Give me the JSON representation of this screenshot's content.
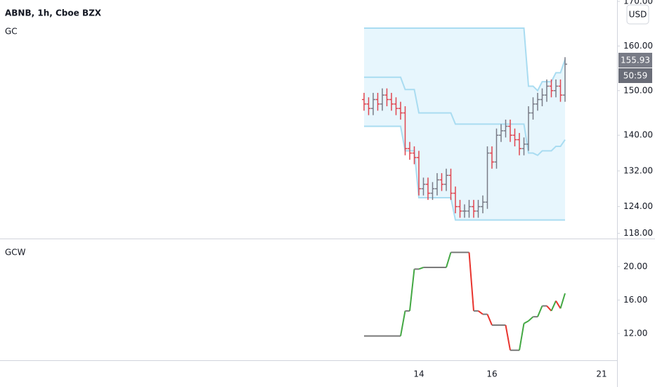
{
  "chart_data": [
    {
      "type": "ohlc",
      "title": "ABNB, 1h, Cboe BZX",
      "subtitle": "GC",
      "categories": [
        null,
        null,
        null,
        null,
        null,
        null,
        null,
        null,
        null,
        null,
        null,
        null,
        "14",
        null,
        null,
        null,
        null,
        null,
        null,
        null,
        null,
        null,
        null,
        null,
        null,
        null,
        null,
        null,
        "16",
        null,
        null,
        null,
        null,
        null,
        null,
        null,
        null,
        null,
        null,
        null,
        null,
        null,
        null,
        null,
        null,
        null,
        null,
        null,
        null,
        null,
        null,
        null,
        "21"
      ],
      "open": [
        148,
        147,
        146,
        148,
        147,
        149,
        148,
        147,
        146,
        145,
        137,
        136,
        135,
        128,
        129,
        127,
        128,
        130,
        129,
        131,
        127,
        124,
        123,
        123,
        124,
        123,
        124,
        125,
        136,
        134,
        140,
        141,
        142,
        140,
        139,
        137,
        138,
        145,
        147,
        148,
        149,
        151,
        150,
        151,
        149,
        null,
        null,
        null,
        null,
        null,
        null,
        null,
        null
      ],
      "high": [
        149.5,
        148.5,
        149.5,
        149.5,
        150.5,
        150.5,
        149.5,
        148.5,
        147.5,
        146.5,
        138.5,
        137.5,
        136.5,
        130.5,
        130.5,
        129.5,
        131.5,
        131.5,
        132.5,
        132.5,
        128.5,
        125.5,
        124.5,
        125.5,
        125.5,
        125.5,
        126.5,
        137.5,
        137.5,
        141.5,
        142.5,
        143.5,
        143.5,
        141.5,
        140.5,
        139.5,
        146.5,
        148.5,
        149.5,
        150.5,
        152.5,
        152.5,
        152.5,
        152.5,
        157.5,
        null,
        null,
        null,
        null,
        null,
        null,
        null,
        null
      ],
      "low": [
        145.5,
        144.5,
        144.5,
        145.5,
        145.5,
        146.5,
        145.5,
        144.5,
        143.5,
        135.5,
        134.5,
        133.5,
        126.5,
        126.5,
        125.5,
        125.5,
        126.5,
        127.5,
        127.5,
        125.5,
        122.5,
        121.5,
        121.5,
        121.5,
        121.5,
        121.5,
        122.5,
        123.5,
        132.5,
        132.5,
        138.5,
        139.5,
        138.5,
        137.5,
        135.5,
        135.5,
        136.5,
        143.5,
        145.5,
        146.5,
        147.5,
        148.5,
        148.5,
        147.5,
        147.5,
        null,
        null,
        null,
        null,
        null,
        null,
        null,
        null
      ],
      "close": [
        147,
        146,
        148,
        147,
        149,
        148,
        147,
        146,
        145,
        137,
        136,
        135,
        128,
        129,
        127,
        128,
        130,
        129,
        131,
        127,
        124,
        123,
        123,
        124,
        123,
        124,
        125,
        136,
        134,
        140,
        141,
        142,
        140,
        139,
        137,
        138,
        145,
        147,
        148,
        149,
        151,
        150,
        151,
        149,
        155.93,
        null,
        null,
        null,
        null,
        null,
        null,
        null,
        null
      ],
      "up_color": "#787b86",
      "down_color": "#e0454f",
      "channel": {
        "color": "#a9dcf1",
        "fill": "#e7f6fd",
        "upper": [
          164,
          164,
          164,
          164,
          164,
          164,
          164,
          164,
          164,
          164,
          164,
          164,
          164,
          164,
          164,
          164,
          164,
          164,
          164,
          164,
          164,
          164,
          164,
          164,
          164,
          164,
          164,
          164,
          164,
          164,
          164,
          164,
          164,
          164,
          164,
          164,
          151,
          151,
          150,
          152,
          152,
          152,
          154,
          154,
          157,
          null,
          null,
          null,
          null,
          null,
          null,
          null,
          null
        ],
        "middle": [
          153,
          153,
          153,
          153,
          153,
          153,
          153,
          153,
          153,
          150.25,
          150.25,
          150.25,
          145,
          145,
          145,
          145,
          145,
          145,
          145,
          145,
          142.5,
          142.5,
          142.5,
          142.5,
          142.5,
          142.5,
          142.5,
          142.5,
          142.5,
          142.5,
          142.5,
          142.5,
          142.5,
          142.5,
          142.5,
          142.5,
          136,
          136,
          135.5,
          136.5,
          136.5,
          136.5,
          137.5,
          137.5,
          139,
          null,
          null,
          null,
          null,
          null,
          null,
          null,
          null
        ],
        "lower": [
          142,
          142,
          142,
          142,
          142,
          142,
          142,
          142,
          142,
          136.5,
          136.5,
          136.5,
          126,
          126,
          126,
          126,
          126,
          126,
          126,
          126,
          121,
          121,
          121,
          121,
          121,
          121,
          121,
          121,
          121,
          121,
          121,
          121,
          121,
          121,
          121,
          121,
          121,
          121,
          121,
          121,
          121,
          121,
          121,
          121,
          121,
          null,
          null,
          null,
          null,
          null,
          null,
          null,
          null
        ]
      },
      "ylim": [
        117,
        170
      ],
      "yticks": [
        {
          "value": 118,
          "label": "118.00"
        },
        {
          "value": 124,
          "label": "124.00"
        },
        {
          "value": 132,
          "label": "132.00"
        },
        {
          "value": 140,
          "label": "140.00"
        },
        {
          "value": 150,
          "label": "150.00"
        },
        {
          "value": 160,
          "label": "160.00"
        },
        {
          "value": 170,
          "label": "170.00"
        }
      ]
    },
    {
      "type": "line",
      "title": "GCW",
      "values": [
        11.7,
        11.7,
        11.7,
        11.7,
        11.7,
        11.7,
        11.7,
        11.7,
        11.7,
        14.7,
        14.7,
        19.7,
        19.7,
        19.9,
        19.9,
        19.9,
        19.9,
        19.9,
        19.9,
        21.7,
        21.7,
        21.7,
        21.7,
        21.7,
        14.7,
        14.7,
        14.3,
        14.3,
        13,
        13,
        13,
        13,
        10,
        10,
        10,
        13.2,
        13.5,
        14,
        14,
        15.3,
        15.3,
        14.7,
        15.9,
        15,
        16.8,
        null,
        null,
        null,
        null,
        null,
        null,
        null,
        null
      ],
      "up_color": "#43a843",
      "down_color": "#e8342e",
      "flat_color": "#787878",
      "ylim": [
        8.8,
        23.1
      ],
      "yticks": [
        {
          "value": 12,
          "label": "12.00"
        },
        {
          "value": 16,
          "label": "16.00"
        },
        {
          "value": 20,
          "label": "20.00"
        }
      ]
    }
  ],
  "currency": "USD",
  "countdown": "50:59"
}
